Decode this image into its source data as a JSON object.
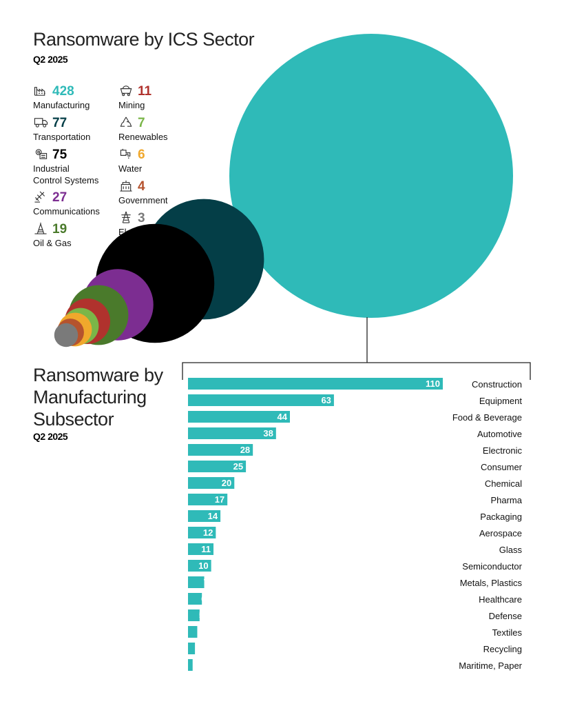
{
  "sector_section": {
    "title": "Ransomware by ICS Sector",
    "subtitle": "Q2 2025"
  },
  "subsector_section": {
    "title_lines": [
      "Ransomware by",
      "Manufacturing",
      "Subsector"
    ],
    "subtitle": "Q2 2025"
  },
  "chart_data": [
    {
      "type": "bubble",
      "title": "Ransomware by ICS Sector",
      "subtitle": "Q2 2025",
      "categories": [
        "Manufacturing",
        "Transportation",
        "Industrial Control Systems",
        "Communications",
        "Oil & Gas",
        "Mining",
        "Renewables",
        "Water",
        "Government",
        "Electric"
      ],
      "category_lines": [
        [
          "Manufacturing"
        ],
        [
          "Transportation"
        ],
        [
          "Industrial",
          "Control Systems"
        ],
        [
          "Communications"
        ],
        [
          "Oil & Gas"
        ],
        [
          "Mining"
        ],
        [
          "Renewables"
        ],
        [
          "Water"
        ],
        [
          "Government"
        ],
        [
          "Electric"
        ]
      ],
      "values": [
        428,
        77,
        75,
        27,
        19,
        11,
        7,
        6,
        4,
        3
      ],
      "colors": [
        "#2fbab8",
        "#043e47",
        "#000000",
        "#7c2d91",
        "#4a7a2b",
        "#b0322d",
        "#7ab648",
        "#f0a82c",
        "#b5532e",
        "#7a7a7a"
      ],
      "icons": [
        "factory-icon",
        "truck-icon",
        "gear-panel-icon",
        "satellite-icon",
        "oil-rig-icon",
        "mine-cart-icon",
        "recycle-icon",
        "faucet-icon",
        "building-icon",
        "power-tower-icon"
      ]
    },
    {
      "type": "bar",
      "orientation": "horizontal",
      "title": "Ransomware by Manufacturing Subsector",
      "subtitle": "Q2 2025",
      "categories": [
        "Construction",
        "Equipment",
        "Food & Beverage",
        "Automotive",
        "Electronic",
        "Consumer",
        "Chemical",
        "Pharma",
        "Packaging",
        "Aerospace",
        "Glass",
        "Semiconductor",
        "Metals, Plastics",
        "Healthcare",
        "Defense",
        "Textiles",
        "Recycling",
        "Maritime, Paper"
      ],
      "values": [
        110,
        63,
        44,
        38,
        28,
        25,
        20,
        17,
        14,
        12,
        11,
        10,
        7,
        6,
        5,
        4,
        3,
        2
      ],
      "color": "#2fbab8"
    }
  ]
}
